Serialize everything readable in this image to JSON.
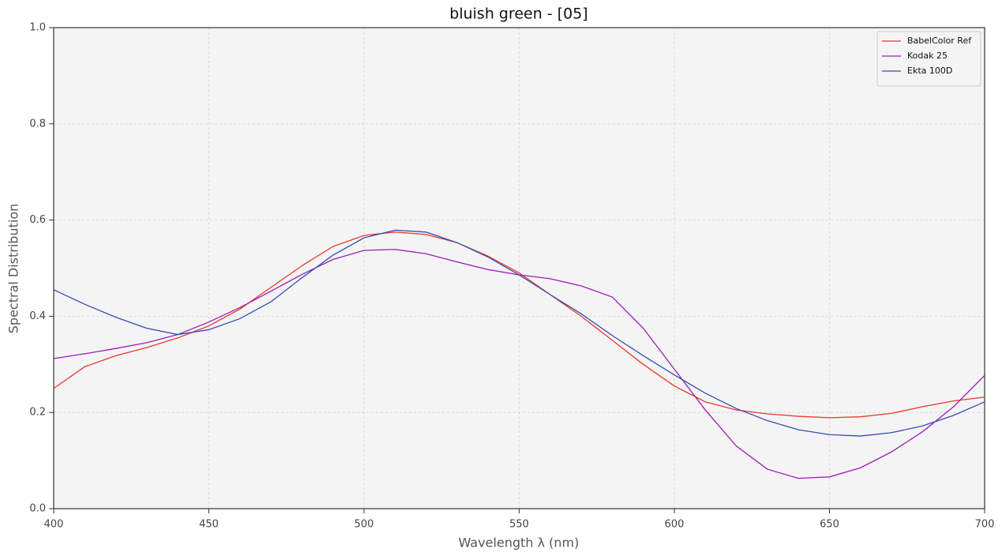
{
  "chart_data": {
    "type": "line",
    "title": "bluish green - [05]",
    "x_label": "Wavelength λ (nm)",
    "y_label": "Spectral Distribution",
    "x": [
      400,
      410,
      420,
      430,
      440,
      450,
      460,
      470,
      480,
      490,
      500,
      510,
      520,
      530,
      540,
      550,
      560,
      570,
      580,
      590,
      600,
      610,
      620,
      630,
      640,
      650,
      660,
      670,
      680,
      690,
      700
    ],
    "series": [
      {
        "name": "BabelColor Ref",
        "color": "#e8392b",
        "values": [
          0.25,
          0.295,
          0.318,
          0.335,
          0.355,
          0.38,
          0.415,
          0.46,
          0.505,
          0.545,
          0.568,
          0.575,
          0.57,
          0.553,
          0.525,
          0.49,
          0.445,
          0.4,
          0.35,
          0.3,
          0.255,
          0.222,
          0.205,
          0.197,
          0.192,
          0.189,
          0.191,
          0.198,
          0.212,
          0.224,
          0.232
        ]
      },
      {
        "name": "Kodak 25",
        "color": "#9c1db5",
        "values": [
          0.312,
          0.322,
          0.333,
          0.345,
          0.362,
          0.388,
          0.418,
          0.452,
          0.487,
          0.518,
          0.537,
          0.539,
          0.53,
          0.513,
          0.497,
          0.486,
          0.478,
          0.463,
          0.44,
          0.375,
          0.29,
          0.205,
          0.13,
          0.082,
          0.063,
          0.066,
          0.085,
          0.118,
          0.16,
          0.212,
          0.277
        ]
      },
      {
        "name": "Ekta 100D",
        "color": "#3a4bb4",
        "values": [
          0.455,
          0.425,
          0.398,
          0.375,
          0.362,
          0.372,
          0.395,
          0.43,
          0.48,
          0.527,
          0.563,
          0.579,
          0.575,
          0.553,
          0.523,
          0.486,
          0.445,
          0.405,
          0.36,
          0.318,
          0.278,
          0.24,
          0.208,
          0.183,
          0.164,
          0.154,
          0.151,
          0.158,
          0.172,
          0.194,
          0.222
        ]
      }
    ],
    "xlim": [
      400,
      700
    ],
    "xticks": [
      400,
      450,
      500,
      550,
      600,
      650,
      700
    ],
    "ylim": [
      0,
      1
    ],
    "yticks": [
      {
        "value": 0,
        "label": "0.0"
      },
      0.2,
      0.4,
      0.6,
      0.8,
      {
        "value": 1,
        "label": "1.0"
      }
    ],
    "grid": true,
    "legend": "upper right"
  }
}
